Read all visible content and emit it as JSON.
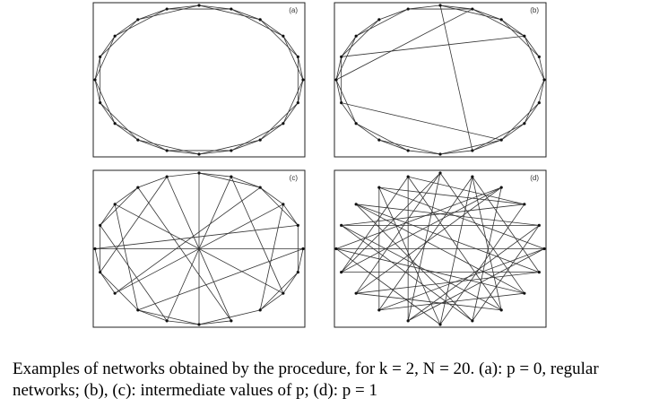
{
  "nodes_per_network": 20,
  "colors": {
    "edge": "#333333",
    "node": "#111111",
    "frame": "#222222"
  },
  "panels": [
    {
      "label": "(a)",
      "edges": [
        [
          0,
          1
        ],
        [
          1,
          2
        ],
        [
          2,
          3
        ],
        [
          3,
          4
        ],
        [
          4,
          5
        ],
        [
          5,
          6
        ],
        [
          6,
          7
        ],
        [
          7,
          8
        ],
        [
          8,
          9
        ],
        [
          9,
          10
        ],
        [
          10,
          11
        ],
        [
          11,
          12
        ],
        [
          12,
          13
        ],
        [
          13,
          14
        ],
        [
          14,
          15
        ],
        [
          15,
          16
        ],
        [
          16,
          17
        ],
        [
          17,
          18
        ],
        [
          18,
          19
        ],
        [
          19,
          0
        ],
        [
          0,
          2
        ],
        [
          1,
          3
        ],
        [
          2,
          4
        ],
        [
          3,
          5
        ],
        [
          4,
          6
        ],
        [
          5,
          7
        ],
        [
          6,
          8
        ],
        [
          7,
          9
        ],
        [
          8,
          10
        ],
        [
          9,
          11
        ],
        [
          10,
          12
        ],
        [
          11,
          13
        ],
        [
          12,
          14
        ],
        [
          13,
          15
        ],
        [
          14,
          16
        ],
        [
          15,
          17
        ],
        [
          16,
          18
        ],
        [
          17,
          19
        ],
        [
          18,
          0
        ],
        [
          19,
          1
        ]
      ]
    },
    {
      "label": "(b)",
      "edges": [
        [
          0,
          1
        ],
        [
          1,
          2
        ],
        [
          2,
          3
        ],
        [
          3,
          4
        ],
        [
          4,
          5
        ],
        [
          5,
          6
        ],
        [
          6,
          7
        ],
        [
          7,
          8
        ],
        [
          8,
          9
        ],
        [
          9,
          10
        ],
        [
          10,
          11
        ],
        [
          11,
          12
        ],
        [
          12,
          13
        ],
        [
          13,
          14
        ],
        [
          14,
          15
        ],
        [
          15,
          16
        ],
        [
          16,
          17
        ],
        [
          17,
          18
        ],
        [
          18,
          19
        ],
        [
          19,
          0
        ],
        [
          0,
          2
        ],
        [
          1,
          3
        ],
        [
          2,
          4
        ],
        [
          3,
          5
        ],
        [
          5,
          7
        ],
        [
          6,
          8
        ],
        [
          7,
          9
        ],
        [
          8,
          10
        ],
        [
          10,
          12
        ],
        [
          11,
          13
        ],
        [
          13,
          15
        ],
        [
          14,
          16
        ],
        [
          15,
          17
        ],
        [
          16,
          18
        ],
        [
          17,
          19
        ],
        [
          19,
          1
        ],
        [
          16,
          3
        ],
        [
          15,
          1
        ],
        [
          14,
          8
        ],
        [
          9,
          0
        ]
      ]
    },
    {
      "label": "(c)",
      "edges": [
        [
          0,
          1
        ],
        [
          1,
          2
        ],
        [
          2,
          3
        ],
        [
          3,
          4
        ],
        [
          5,
          6
        ],
        [
          6,
          7
        ],
        [
          7,
          8
        ],
        [
          9,
          10
        ],
        [
          10,
          11
        ],
        [
          11,
          12
        ],
        [
          13,
          14
        ],
        [
          14,
          15
        ],
        [
          16,
          17
        ],
        [
          17,
          18
        ],
        [
          18,
          19
        ],
        [
          19,
          0
        ],
        [
          0,
          2
        ],
        [
          2,
          4
        ],
        [
          4,
          6
        ],
        [
          6,
          8
        ],
        [
          8,
          10
        ],
        [
          10,
          12
        ],
        [
          12,
          14
        ],
        [
          14,
          16
        ],
        [
          16,
          18
        ],
        [
          0,
          10
        ],
        [
          15,
          5
        ],
        [
          13,
          3
        ],
        [
          17,
          7
        ],
        [
          19,
          9
        ],
        [
          1,
          11
        ],
        [
          11,
          16
        ],
        [
          4,
          15
        ],
        [
          9,
          18
        ],
        [
          3,
          8
        ],
        [
          12,
          17
        ],
        [
          5,
          12
        ],
        [
          7,
          1
        ],
        [
          2,
          13
        ],
        [
          14,
          19
        ]
      ]
    },
    {
      "label": "(d)",
      "edges": [
        [
          0,
          7
        ],
        [
          1,
          12
        ],
        [
          2,
          9
        ],
        [
          3,
          16
        ],
        [
          4,
          11
        ],
        [
          5,
          18
        ],
        [
          6,
          13
        ],
        [
          7,
          15
        ],
        [
          8,
          1
        ],
        [
          9,
          17
        ],
        [
          10,
          3
        ],
        [
          11,
          19
        ],
        [
          12,
          5
        ],
        [
          13,
          0
        ],
        [
          14,
          6
        ],
        [
          15,
          2
        ],
        [
          16,
          8
        ],
        [
          17,
          4
        ],
        [
          18,
          10
        ],
        [
          19,
          14
        ],
        [
          0,
          11
        ],
        [
          1,
          6
        ],
        [
          2,
          14
        ],
        [
          3,
          19
        ],
        [
          4,
          9
        ],
        [
          5,
          15
        ],
        [
          6,
          17
        ],
        [
          7,
          12
        ],
        [
          8,
          13
        ],
        [
          9,
          16
        ],
        [
          10,
          1
        ],
        [
          11,
          5
        ],
        [
          12,
          18
        ],
        [
          13,
          2
        ],
        [
          14,
          0
        ],
        [
          15,
          10
        ],
        [
          16,
          4
        ],
        [
          17,
          7
        ],
        [
          18,
          3
        ],
        [
          19,
          8
        ]
      ]
    }
  ],
  "caption": {
    "line1": "Examples of networks obtained by the procedure, for k = 2, N = 20. (a): p = 0, regular",
    "line2": "networks; (b), (c): intermediate values of p; (d): p = 1"
  }
}
